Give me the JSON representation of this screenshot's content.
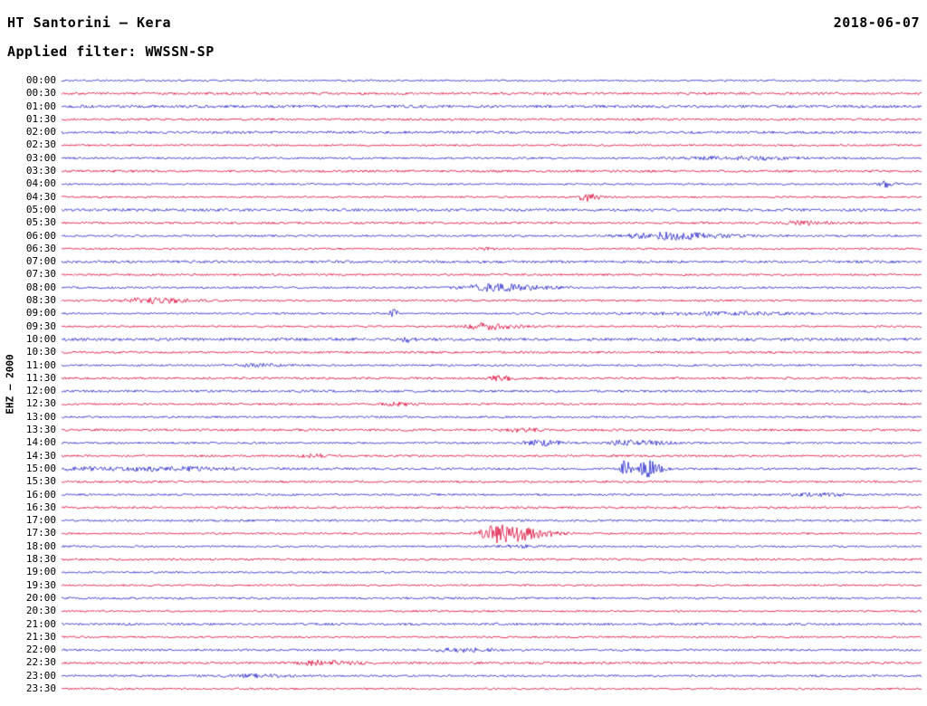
{
  "header": {
    "title": "HT Santorini – Kera",
    "date": "2018-06-07",
    "filter_label": "Applied filter: WWSSN-SP"
  },
  "chart_data": {
    "type": "line",
    "kind": "seismogram-helicorder",
    "title": "HT Santorini – Kera",
    "date": "2018-06-07",
    "filter": "WWSSN-SP",
    "channel_label": "EHZ – 2000",
    "time_axis": {
      "start": "00:00",
      "end": "23:30",
      "step_minutes": 30,
      "rows_count": 48
    },
    "legend": "none",
    "grid": "off",
    "colors": {
      "blue": "#2222cc",
      "red": "#dd0033"
    },
    "rows": [
      {
        "label": "00:00",
        "color": "blue",
        "noise": 1.0,
        "events": []
      },
      {
        "label": "00:30",
        "color": "red",
        "noise": 1.3,
        "events": []
      },
      {
        "label": "01:00",
        "color": "blue",
        "noise": 1.5,
        "events": []
      },
      {
        "label": "01:30",
        "color": "red",
        "noise": 1.2,
        "events": []
      },
      {
        "label": "02:00",
        "color": "blue",
        "noise": 1.4,
        "events": []
      },
      {
        "label": "02:30",
        "color": "red",
        "noise": 1.0,
        "events": []
      },
      {
        "label": "03:00",
        "color": "blue",
        "noise": 1.1,
        "events": [
          {
            "x": 0.79,
            "amp": 1.6,
            "rise": 0.05,
            "decay": 0.05
          }
        ]
      },
      {
        "label": "03:30",
        "color": "red",
        "noise": 1.25,
        "events": []
      },
      {
        "label": "04:00",
        "color": "blue",
        "noise": 1.0,
        "events": [
          {
            "x": 0.957,
            "amp": 3.2,
            "rise": 0.004,
            "decay": 0.01
          }
        ]
      },
      {
        "label": "04:30",
        "color": "red",
        "noise": 1.0,
        "events": [
          {
            "x": 0.607,
            "amp": 4.5,
            "rise": 0.004,
            "decay": 0.012
          }
        ]
      },
      {
        "label": "05:00",
        "color": "blue",
        "noise": 1.5,
        "events": []
      },
      {
        "label": "05:30",
        "color": "red",
        "noise": 1.2,
        "events": [
          {
            "x": 0.855,
            "amp": 1.6,
            "rise": 0.012,
            "decay": 0.025
          }
        ]
      },
      {
        "label": "06:00",
        "color": "blue",
        "noise": 1.1,
        "events": [
          {
            "x": 0.7,
            "amp": 3.8,
            "rise": 0.03,
            "decay": 0.05
          }
        ]
      },
      {
        "label": "06:30",
        "color": "red",
        "noise": 1.0,
        "events": [
          {
            "x": 0.494,
            "amp": 2.2,
            "rise": 0.003,
            "decay": 0.006
          }
        ]
      },
      {
        "label": "07:00",
        "color": "blue",
        "noise": 1.4,
        "events": []
      },
      {
        "label": "07:30",
        "color": "red",
        "noise": 1.1,
        "events": []
      },
      {
        "label": "08:00",
        "color": "blue",
        "noise": 1.1,
        "events": [
          {
            "x": 0.5,
            "amp": 3.6,
            "rise": 0.025,
            "decay": 0.045
          }
        ]
      },
      {
        "label": "08:30",
        "color": "red",
        "noise": 1.1,
        "events": [
          {
            "x": 0.1,
            "amp": 2.8,
            "rise": 0.02,
            "decay": 0.035
          }
        ]
      },
      {
        "label": "09:00",
        "color": "blue",
        "noise": 1.0,
        "events": [
          {
            "x": 0.385,
            "amp": 6.0,
            "rise": 0.002,
            "decay": 0.004
          },
          {
            "x": 0.77,
            "amp": 1.5,
            "rise": 0.07,
            "decay": 0.07
          }
        ]
      },
      {
        "label": "09:30",
        "color": "red",
        "noise": 1.0,
        "events": [
          {
            "x": 0.49,
            "amp": 3.2,
            "rise": 0.015,
            "decay": 0.03
          }
        ]
      },
      {
        "label": "10:00",
        "color": "blue",
        "noise": 1.6,
        "events": [
          {
            "x": 0.4,
            "amp": 2.6,
            "rise": 0.003,
            "decay": 0.007
          }
        ]
      },
      {
        "label": "10:30",
        "color": "red",
        "noise": 1.2,
        "events": []
      },
      {
        "label": "11:00",
        "color": "blue",
        "noise": 1.1,
        "events": [
          {
            "x": 0.225,
            "amp": 1.6,
            "rise": 0.012,
            "decay": 0.022
          }
        ]
      },
      {
        "label": "11:30",
        "color": "red",
        "noise": 1.2,
        "events": [
          {
            "x": 0.505,
            "amp": 2.0,
            "rise": 0.008,
            "decay": 0.018
          }
        ]
      },
      {
        "label": "12:00",
        "color": "blue",
        "noise": 1.3,
        "events": []
      },
      {
        "label": "12:30",
        "color": "red",
        "noise": 1.1,
        "events": [
          {
            "x": 0.385,
            "amp": 1.6,
            "rise": 0.01,
            "decay": 0.02
          }
        ]
      },
      {
        "label": "13:00",
        "color": "blue",
        "noise": 1.1,
        "events": []
      },
      {
        "label": "13:30",
        "color": "red",
        "noise": 1.3,
        "events": [
          {
            "x": 0.53,
            "amp": 1.5,
            "rise": 0.01,
            "decay": 0.02
          }
        ]
      },
      {
        "label": "14:00",
        "color": "blue",
        "noise": 1.1,
        "events": [
          {
            "x": 0.555,
            "amp": 2.8,
            "rise": 0.012,
            "decay": 0.02
          },
          {
            "x": 0.66,
            "amp": 3.2,
            "rise": 0.015,
            "decay": 0.028
          }
        ]
      },
      {
        "label": "14:30",
        "color": "red",
        "noise": 1.1,
        "events": [
          {
            "x": 0.29,
            "amp": 1.4,
            "rise": 0.01,
            "decay": 0.02
          }
        ]
      },
      {
        "label": "15:00",
        "color": "blue",
        "noise": 1.2,
        "events": [
          {
            "x": 0.1,
            "amp": 1.8,
            "rise": 0.09,
            "decay": 0.09
          },
          {
            "x": 0.655,
            "amp": 8.5,
            "rise": 0.004,
            "decay": 0.005
          },
          {
            "x": 0.678,
            "amp": 10.0,
            "rise": 0.004,
            "decay": 0.012
          }
        ]
      },
      {
        "label": "15:30",
        "color": "red",
        "noise": 1.2,
        "events": []
      },
      {
        "label": "16:00",
        "color": "blue",
        "noise": 1.1,
        "events": [
          {
            "x": 0.87,
            "amp": 1.5,
            "rise": 0.02,
            "decay": 0.035
          }
        ]
      },
      {
        "label": "16:30",
        "color": "red",
        "noise": 1.2,
        "events": []
      },
      {
        "label": "17:00",
        "color": "blue",
        "noise": 1.2,
        "events": []
      },
      {
        "label": "17:30",
        "color": "red",
        "noise": 1.0,
        "events": [
          {
            "x": 0.505,
            "amp": 10.0,
            "rise": 0.012,
            "decay": 0.038
          }
        ]
      },
      {
        "label": "18:00",
        "color": "blue",
        "noise": 1.0,
        "events": [
          {
            "x": 0.53,
            "amp": 1.4,
            "rise": 0.015,
            "decay": 0.025
          }
        ]
      },
      {
        "label": "18:30",
        "color": "red",
        "noise": 1.2,
        "events": []
      },
      {
        "label": "19:00",
        "color": "blue",
        "noise": 1.0,
        "events": []
      },
      {
        "label": "19:30",
        "color": "red",
        "noise": 1.0,
        "events": []
      },
      {
        "label": "20:00",
        "color": "blue",
        "noise": 1.2,
        "events": []
      },
      {
        "label": "20:30",
        "color": "red",
        "noise": 1.0,
        "events": []
      },
      {
        "label": "21:00",
        "color": "blue",
        "noise": 1.3,
        "events": []
      },
      {
        "label": "21:30",
        "color": "red",
        "noise": 1.0,
        "events": []
      },
      {
        "label": "22:00",
        "color": "blue",
        "noise": 1.2,
        "events": [
          {
            "x": 0.46,
            "amp": 1.7,
            "rise": 0.02,
            "decay": 0.035
          }
        ]
      },
      {
        "label": "22:30",
        "color": "red",
        "noise": 1.2,
        "events": [
          {
            "x": 0.3,
            "amp": 2.4,
            "rise": 0.015,
            "decay": 0.03
          }
        ]
      },
      {
        "label": "23:00",
        "color": "blue",
        "noise": 1.1,
        "events": [
          {
            "x": 0.22,
            "amp": 1.4,
            "rise": 0.02,
            "decay": 0.035
          }
        ]
      },
      {
        "label": "23:30",
        "color": "red",
        "noise": 1.0,
        "events": []
      }
    ]
  }
}
